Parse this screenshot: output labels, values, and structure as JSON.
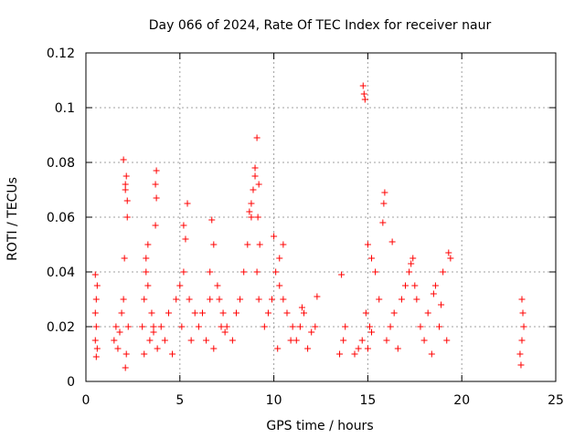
{
  "chart_data": {
    "type": "scatter",
    "title": "Day 066 of 2024, Rate Of TEC Index for receiver naur",
    "xlabel": "GPS time / hours",
    "ylabel": "ROTI / TECUs",
    "xlim": [
      0,
      25
    ],
    "ylim": [
      0,
      0.12
    ],
    "x_ticks": [
      0,
      5,
      10,
      15,
      20,
      25
    ],
    "x_tick_labels": [
      "0",
      "5",
      "10",
      "15",
      "20",
      "25"
    ],
    "y_ticks": [
      0,
      0.02,
      0.04,
      0.06,
      0.08,
      0.1,
      0.12
    ],
    "y_tick_labels": [
      "0",
      "0.02",
      "0.04",
      "0.06",
      "0.08",
      "0.1",
      "0.12"
    ],
    "grid": true,
    "marker": "+",
    "color": "#ff0000",
    "series": [
      {
        "x": [
          0.5,
          0.55,
          0.6,
          0.5,
          0.55,
          0.6,
          0.5,
          0.55,
          1.5,
          1.6,
          1.7,
          1.8,
          1.9,
          2.0,
          2.05,
          2.1,
          2.15,
          2.2,
          2.25,
          2.0,
          2.1,
          2.2,
          2.15,
          2.1,
          3.0,
          3.1,
          3.2,
          3.3,
          3.4,
          3.5,
          3.6,
          3.7,
          3.75,
          3.2,
          3.1,
          3.3,
          3.7,
          3.75,
          3.8,
          3.6,
          4.0,
          4.2,
          4.4,
          4.6,
          4.8,
          5.0,
          5.2,
          5.4,
          5.3,
          5.2,
          5.1,
          5.6,
          5.8,
          5.5,
          6.0,
          6.2,
          6.4,
          6.6,
          6.8,
          7.0,
          7.2,
          7.4,
          6.7,
          6.8,
          6.6,
          7.1,
          7.3,
          7.5,
          7.8,
          8.0,
          8.2,
          8.4,
          8.6,
          8.8,
          9.0,
          9.1,
          9.2,
          9.25,
          8.7,
          8.8,
          8.9,
          9.0,
          9.15,
          9.1,
          9.2,
          9.5,
          9.7,
          9.9,
          10.0,
          10.1,
          10.3,
          10.5,
          10.7,
          10.9,
          11.0,
          10.2,
          10.3,
          10.5,
          11.2,
          11.4,
          11.6,
          11.8,
          12.0,
          12.2,
          12.3,
          11.5,
          13.5,
          13.7,
          13.8,
          13.6,
          14.3,
          14.5,
          14.7,
          14.75,
          14.8,
          14.85,
          14.9,
          15.0,
          15.2,
          15.4,
          15.6,
          15.8,
          15.9,
          15.85,
          15.0,
          15.2,
          15.1,
          16.0,
          16.2,
          16.4,
          16.6,
          16.8,
          17.0,
          17.2,
          17.4,
          17.6,
          17.8,
          18.0,
          18.2,
          18.4,
          18.6,
          18.8,
          19.0,
          19.2,
          19.4,
          19.3,
          17.3,
          17.5,
          16.3,
          18.5,
          18.9,
          23.1,
          23.2,
          23.3,
          23.25,
          23.2,
          23.15
        ],
        "y": [
          0.015,
          0.02,
          0.012,
          0.025,
          0.03,
          0.035,
          0.039,
          0.009,
          0.015,
          0.02,
          0.012,
          0.018,
          0.025,
          0.03,
          0.045,
          0.07,
          0.075,
          0.06,
          0.02,
          0.081,
          0.072,
          0.066,
          0.01,
          0.005,
          0.02,
          0.03,
          0.04,
          0.05,
          0.015,
          0.025,
          0.02,
          0.057,
          0.077,
          0.045,
          0.01,
          0.035,
          0.072,
          0.067,
          0.012,
          0.018,
          0.02,
          0.015,
          0.025,
          0.01,
          0.03,
          0.035,
          0.057,
          0.065,
          0.052,
          0.04,
          0.02,
          0.015,
          0.025,
          0.03,
          0.02,
          0.025,
          0.015,
          0.03,
          0.012,
          0.035,
          0.02,
          0.018,
          0.059,
          0.05,
          0.04,
          0.03,
          0.025,
          0.02,
          0.015,
          0.025,
          0.03,
          0.04,
          0.05,
          0.06,
          0.075,
          0.089,
          0.072,
          0.05,
          0.062,
          0.065,
          0.07,
          0.078,
          0.06,
          0.04,
          0.03,
          0.02,
          0.025,
          0.03,
          0.053,
          0.04,
          0.035,
          0.05,
          0.025,
          0.015,
          0.02,
          0.012,
          0.045,
          0.03,
          0.015,
          0.02,
          0.025,
          0.012,
          0.018,
          0.02,
          0.031,
          0.027,
          0.01,
          0.015,
          0.02,
          0.039,
          0.01,
          0.012,
          0.015,
          0.108,
          0.105,
          0.103,
          0.025,
          0.05,
          0.045,
          0.04,
          0.03,
          0.058,
          0.069,
          0.065,
          0.012,
          0.018,
          0.02,
          0.015,
          0.02,
          0.025,
          0.012,
          0.03,
          0.035,
          0.04,
          0.045,
          0.03,
          0.02,
          0.015,
          0.025,
          0.01,
          0.035,
          0.02,
          0.04,
          0.015,
          0.045,
          0.047,
          0.043,
          0.035,
          0.051,
          0.032,
          0.028,
          0.01,
          0.015,
          0.02,
          0.025,
          0.03,
          0.006
        ]
      }
    ]
  }
}
